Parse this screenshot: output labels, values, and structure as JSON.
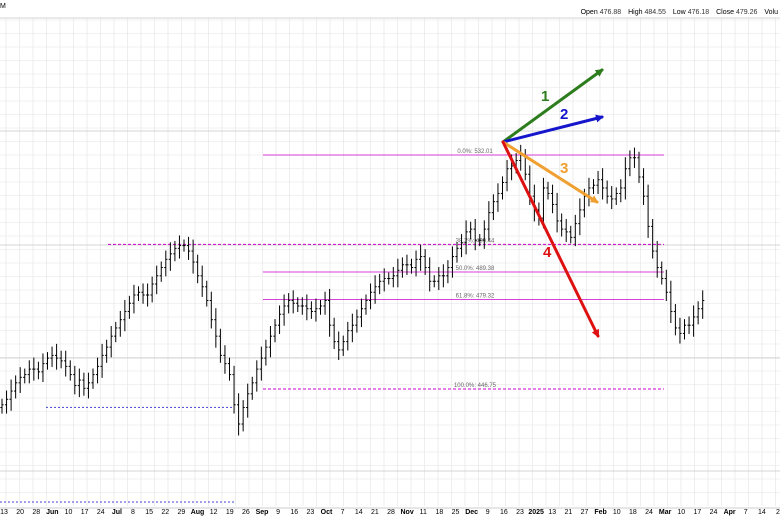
{
  "header": {
    "corner_text": "M",
    "open_label": "Open",
    "open_value": "476.88",
    "high_label": "High",
    "high_value": "484.55",
    "low_label": "Low",
    "low_value": "476.18",
    "close_label": "Close",
    "close_value": "479.26",
    "volume_label": "Volu"
  },
  "chart_data": {
    "type": "ohlc",
    "ylim": [
      440,
      550
    ],
    "grid": true,
    "colors": {
      "bars": "#000000",
      "fib": "#cc00cc",
      "support": "#cc00cc",
      "floor": "#4444cc",
      "arrow1": "#2d7d1e",
      "arrow2": "#1515cc",
      "arrow3": "#f0a030",
      "arrow4": "#dd1111"
    },
    "x_tick_labels": [
      "13",
      "20",
      "28",
      "Jun",
      "10",
      "17",
      "24",
      "Jul",
      "8",
      "15",
      "22",
      "29",
      "Aug",
      "12",
      "19",
      "26",
      "Sep",
      "9",
      "16",
      "23",
      "Oct",
      "7",
      "14",
      "21",
      "28",
      "Nov",
      "11",
      "18",
      "25",
      "Dec",
      "9",
      "16",
      "23",
      "2025",
      "13",
      "21",
      "27",
      "Feb",
      "10",
      "18",
      "24",
      "Mar",
      "10",
      "17",
      "24",
      "Apr",
      "7",
      "14",
      "2"
    ],
    "fib_levels": [
      {
        "label": "0.0%: 532.01",
        "value": 532.01
      },
      {
        "label": "38.2%: 499.44",
        "value": 499.44
      },
      {
        "label": "50.0%: 489.38",
        "value": 489.38
      },
      {
        "label": "61.8%: 479.32",
        "value": 479.32
      },
      {
        "label": "100.0%: 446.75",
        "value": 446.75
      }
    ],
    "support_line": {
      "value": 499.44
    },
    "floor_line": {
      "value": 441.5
    },
    "scenario_arrows": [
      {
        "label": "1",
        "direction": "up-steep"
      },
      {
        "label": "2",
        "direction": "up"
      },
      {
        "label": "3",
        "direction": "down-shallow"
      },
      {
        "label": "4",
        "direction": "down-steep"
      }
    ],
    "closes": [
      441,
      443,
      446,
      449,
      451,
      452,
      454,
      454,
      453,
      456,
      458,
      459,
      458,
      457,
      455,
      452,
      448,
      450,
      447,
      449,
      452,
      455,
      459,
      462,
      466,
      469,
      472,
      475,
      478,
      481,
      482,
      481,
      481,
      485,
      488,
      491,
      494,
      496,
      498,
      499,
      499,
      497,
      493,
      488,
      484,
      479,
      472,
      466,
      459,
      456,
      452,
      441,
      434,
      440,
      445,
      449,
      454,
      458,
      462,
      466,
      470,
      474,
      477,
      479,
      478,
      477,
      477,
      476,
      475,
      476,
      477,
      479,
      470,
      464,
      461,
      464,
      468,
      470,
      473,
      476,
      479,
      482,
      484,
      486,
      487,
      487,
      488,
      490,
      492,
      492,
      491,
      494,
      495,
      491,
      486,
      486,
      488,
      488,
      491,
      495,
      498,
      500,
      504,
      505,
      501,
      501,
      505,
      511,
      515,
      518,
      522,
      527,
      528,
      530,
      532,
      525,
      517,
      512,
      509,
      520,
      518,
      514,
      508,
      505,
      504,
      502,
      507,
      512,
      517,
      520,
      521,
      523,
      520,
      517,
      516,
      518,
      520,
      527,
      531,
      531,
      524,
      517,
      506,
      497,
      491,
      487,
      482,
      475,
      469,
      467,
      470,
      470,
      473,
      476,
      479
    ]
  }
}
